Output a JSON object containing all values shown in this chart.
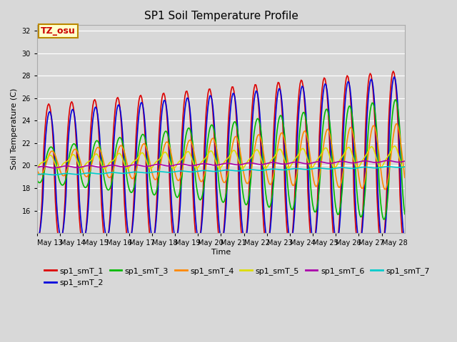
{
  "title": "SP1 Soil Temperature Profile",
  "xlabel": "Time",
  "ylabel": "Soil Temperature (C)",
  "ylim": [
    14,
    32.5
  ],
  "yticks": [
    16,
    18,
    20,
    22,
    24,
    26,
    28,
    30,
    32
  ],
  "annotation": "TZ_osu",
  "annotation_color": "#cc0000",
  "annotation_bg": "#ffffcc",
  "annotation_border": "#bb8800",
  "colors": {
    "sp1_smT_1": "#dd0000",
    "sp1_smT_2": "#0000dd",
    "sp1_smT_3": "#00bb00",
    "sp1_smT_4": "#ff8800",
    "sp1_smT_5": "#dddd00",
    "sp1_smT_6": "#aa00aa",
    "sp1_smT_7": "#00cccc"
  },
  "fig_bg": "#d8d8d8",
  "plot_bg": "#d8d8d8",
  "x_tick_labels": [
    "May 13",
    "May 14",
    "May 15",
    "May 16",
    "May 17",
    "May 18",
    "May 19",
    "May 20",
    "May 21",
    "May 22",
    "May 23",
    "May 24",
    "May 25",
    "May 26",
    "May 27",
    "May 28"
  ]
}
